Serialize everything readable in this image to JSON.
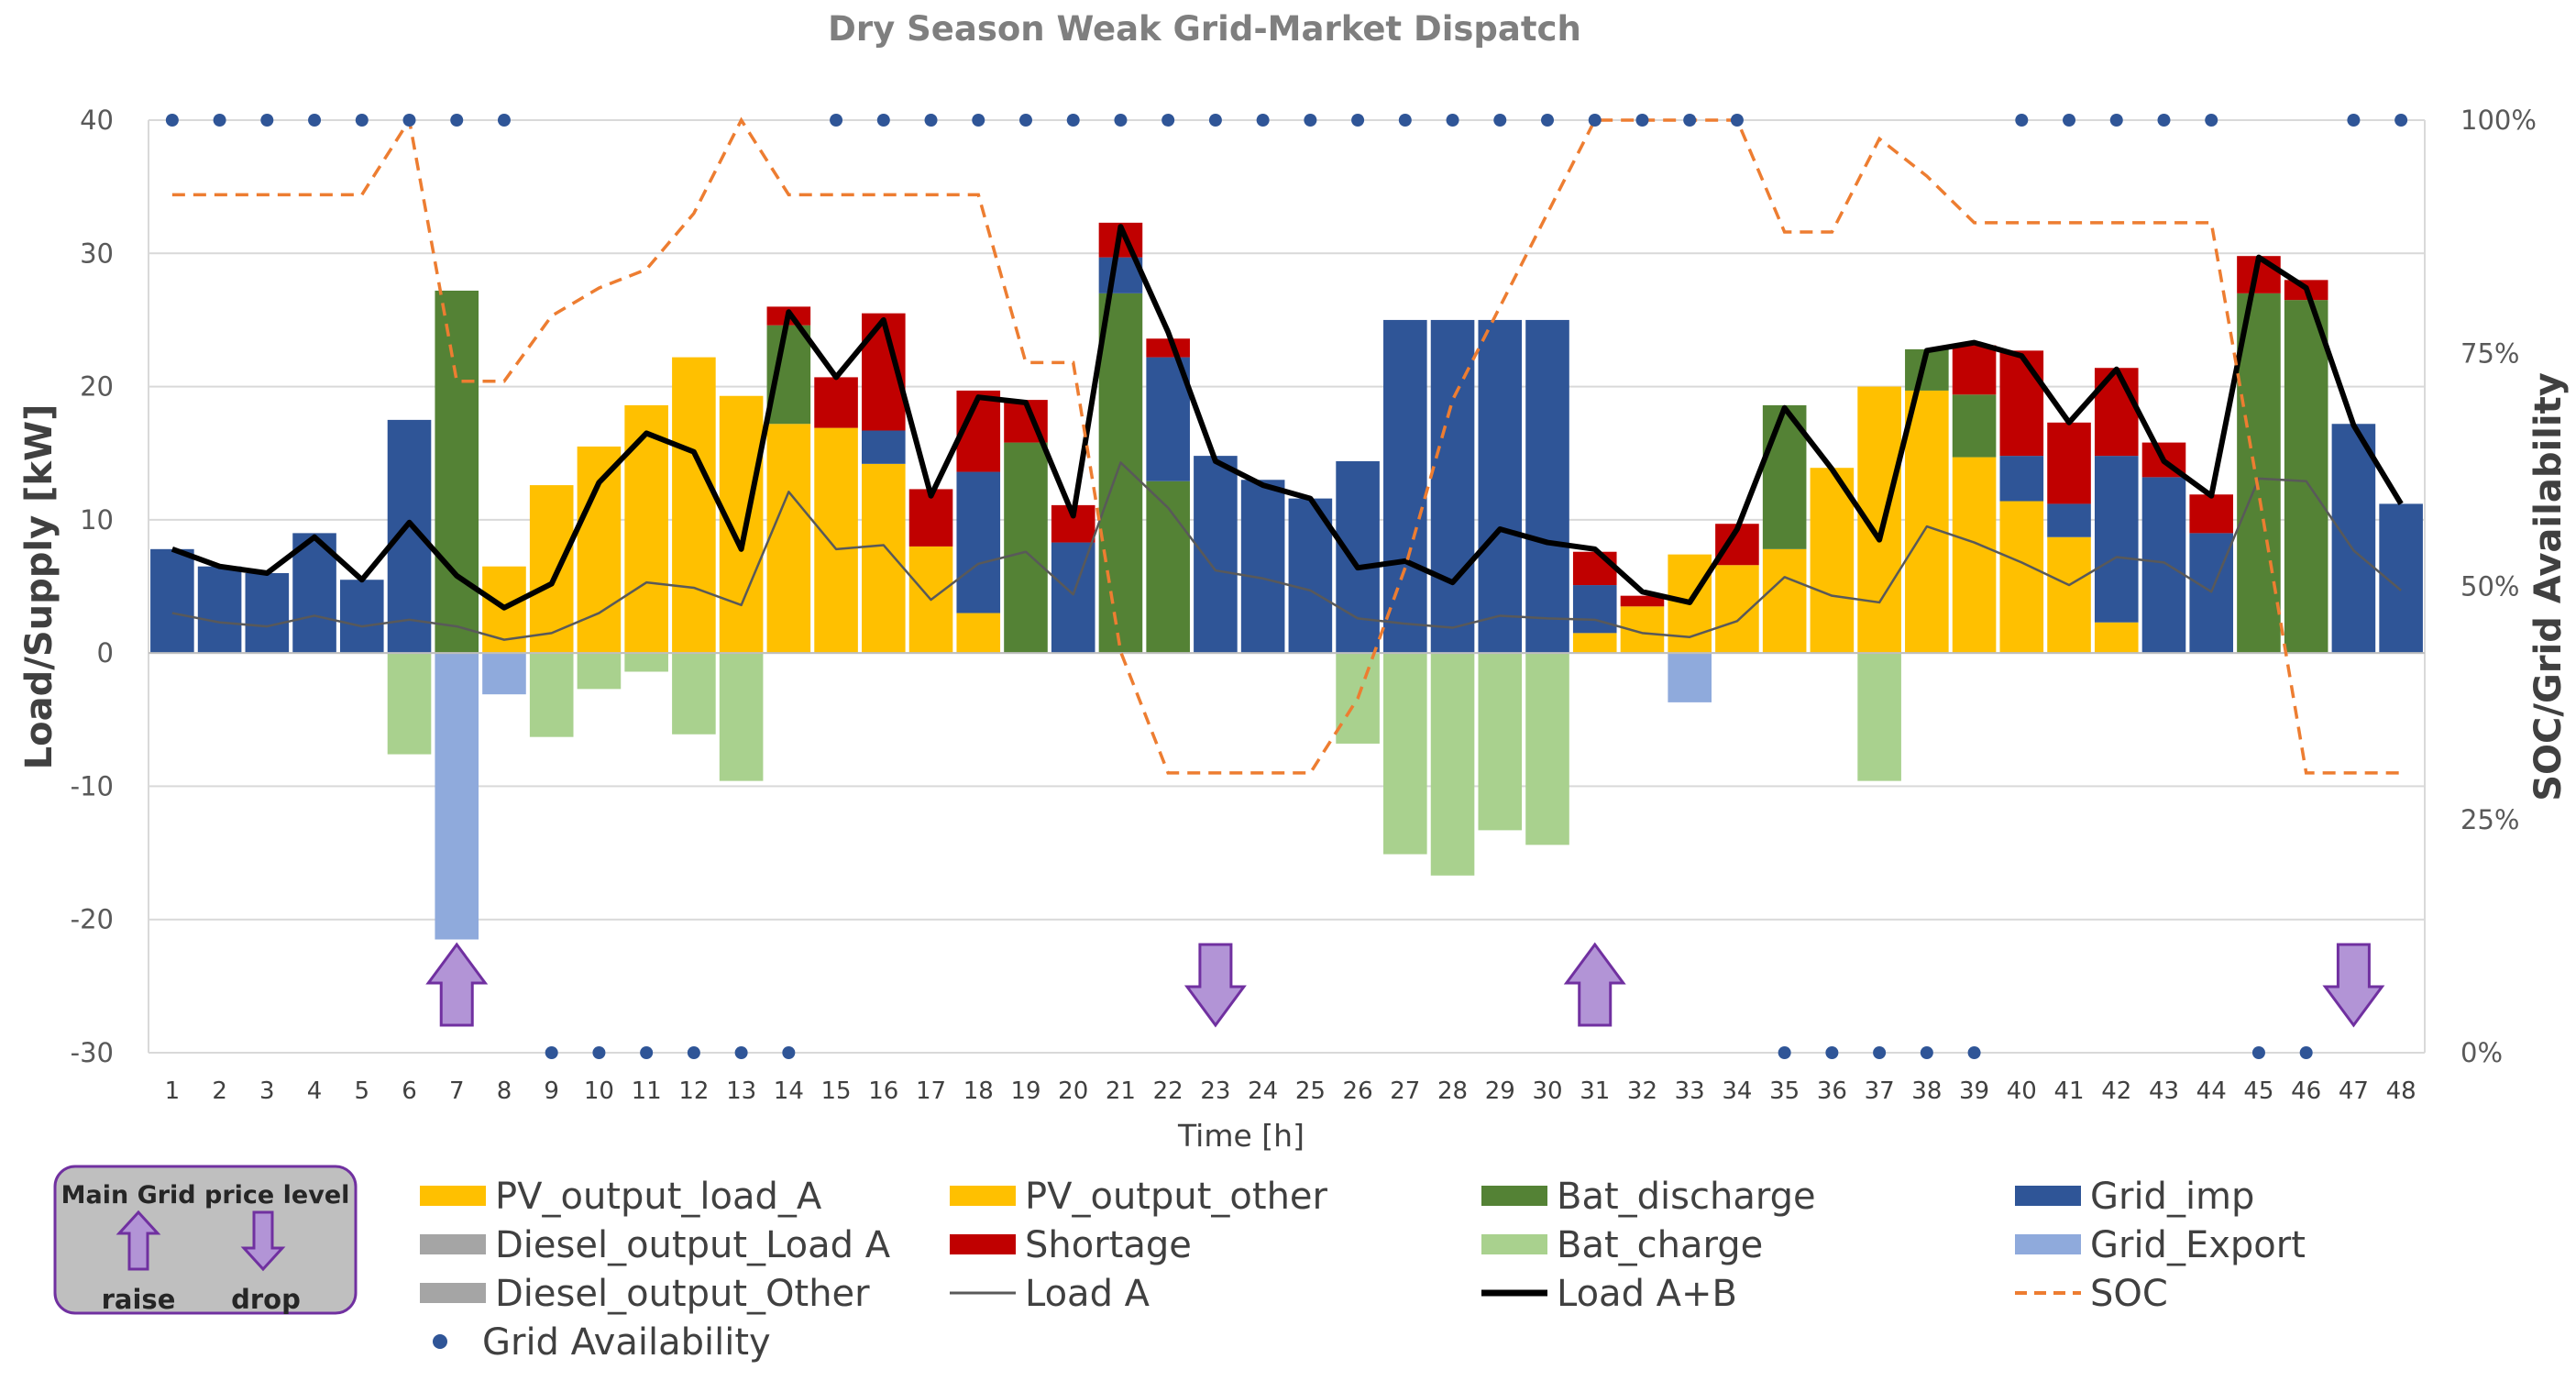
{
  "chart_data": {
    "type": "bar",
    "title": "Dry Season Weak Grid-Market Dispatch",
    "xlabel": "Time [h]",
    "ylabel": "Load/Supply [kW]",
    "ylabel_right": "SOC/Grid Availability",
    "ylim": [
      -30,
      40
    ],
    "yticks": [
      -30,
      -20,
      -10,
      0,
      10,
      20,
      30,
      40
    ],
    "ylim_right": [
      0,
      100
    ],
    "yticks_right": [
      "0%",
      "25%",
      "50%",
      "75%",
      "100%"
    ],
    "grid": true,
    "legend_position": "bottom",
    "colors": {
      "pv": "#FFC000",
      "diesel": "#A5A5A5",
      "bat_discharge": "#548235",
      "bat_charge": "#A9D18E",
      "grid_imp": "#2F5597",
      "grid_export": "#8FAADC",
      "shortage": "#C00000",
      "load_a": "#595959",
      "load_ab": "#000000",
      "soc": "#ED7D31",
      "grid_avail": "#2F5597",
      "price_arrow": "#B294D6",
      "price_arrow_edge": "#7030A0"
    },
    "x": [
      1,
      2,
      3,
      4,
      5,
      6,
      7,
      8,
      9,
      10,
      11,
      12,
      13,
      14,
      15,
      16,
      17,
      18,
      19,
      20,
      21,
      22,
      23,
      24,
      25,
      26,
      27,
      28,
      29,
      30,
      31,
      32,
      33,
      34,
      35,
      36,
      37,
      38,
      39,
      40,
      41,
      42,
      43,
      44,
      45,
      46,
      47,
      48
    ],
    "stack_series": [
      {
        "name": "PV_output_load_A",
        "color": "#FFC000",
        "values": [
          0,
          0,
          0,
          0,
          0,
          0,
          0,
          0,
          0,
          0,
          0,
          0,
          0,
          0,
          0,
          0,
          0,
          0,
          0,
          0,
          0,
          0,
          0,
          0,
          0,
          0,
          0,
          0,
          0,
          0,
          0,
          0,
          0,
          0,
          0,
          0,
          0,
          0,
          0,
          0,
          0,
          0,
          0,
          0,
          0,
          0,
          0,
          0
        ]
      },
      {
        "name": "PV_output_other",
        "color": "#FFC000",
        "values": [
          0,
          0,
          0,
          0,
          0,
          0,
          0,
          6.5,
          12.6,
          15.5,
          18.6,
          22.2,
          19.3,
          17.2,
          16.9,
          14.2,
          8,
          3,
          0,
          0,
          0,
          0,
          0,
          0,
          0,
          0,
          0,
          0,
          0,
          0,
          1.5,
          3.5,
          7.4,
          6.6,
          7.8,
          13.9,
          20,
          19.7,
          14.7,
          11.4,
          8.7,
          2.3,
          0,
          0,
          0,
          0,
          0,
          0
        ]
      },
      {
        "name": "Bat_discharge",
        "color": "#548235",
        "values": [
          0,
          0,
          0,
          0,
          0,
          0,
          27.2,
          0,
          0,
          0,
          0,
          0,
          0,
          7.4,
          0,
          0,
          0,
          0,
          15.8,
          0,
          27,
          12.9,
          0,
          0,
          0,
          0,
          0,
          0,
          0,
          0,
          0,
          0,
          0,
          0,
          10.8,
          0,
          0,
          3.1,
          4.7,
          0,
          0,
          0,
          0,
          0,
          27,
          26.5,
          0,
          0
        ]
      },
      {
        "name": "Grid_imp",
        "color": "#2F5597",
        "values": [
          7.8,
          6.5,
          6,
          9,
          5.5,
          17.5,
          0,
          0,
          0,
          0,
          0,
          0,
          0,
          0,
          0,
          2.5,
          0,
          10.6,
          0,
          8.3,
          2.7,
          9.3,
          14.8,
          13,
          11.6,
          14.4,
          25,
          25,
          25,
          25,
          3.6,
          0,
          0,
          0,
          0,
          0,
          0,
          0,
          0,
          3.4,
          2.5,
          12.5,
          13.2,
          9,
          0,
          0,
          17.2,
          11.2
        ]
      },
      {
        "name": "Shortage",
        "color": "#C00000",
        "values": [
          0,
          0,
          0,
          0,
          0,
          0,
          0,
          0,
          0,
          0,
          0,
          0,
          0,
          1.4,
          3.8,
          8.8,
          4.3,
          6.1,
          3.2,
          2.8,
          2.6,
          1.4,
          0,
          0,
          0,
          0,
          0,
          0,
          0,
          0,
          2.5,
          0.8,
          0,
          3.1,
          0,
          0,
          0,
          0,
          3.7,
          7.9,
          6.1,
          6.6,
          2.6,
          2.9,
          2.8,
          1.5,
          0,
          0
        ]
      }
    ],
    "neg_series": [
      {
        "name": "Bat_charge",
        "color": "#A9D18E",
        "values": [
          0,
          0,
          0,
          0,
          0,
          -7.6,
          0,
          0,
          -6.3,
          -2.7,
          -1.4,
          -6.1,
          -9.6,
          0,
          0,
          0,
          0,
          0,
          0,
          0,
          0,
          0,
          0,
          0,
          0,
          -6.8,
          -15.1,
          -16.7,
          -13.3,
          -14.4,
          0,
          0,
          0,
          0,
          0,
          0,
          -9.6,
          0,
          0,
          0,
          0,
          0,
          0,
          0,
          0,
          0,
          0,
          0
        ]
      },
      {
        "name": "Grid_Export",
        "color": "#8FAADC",
        "values": [
          0,
          0,
          0,
          0,
          0,
          0,
          -21.5,
          -3.1,
          0,
          0,
          0,
          0,
          0,
          0,
          0,
          0,
          0,
          0,
          0,
          0,
          0,
          0,
          0,
          0,
          0,
          0,
          0,
          0,
          0,
          0,
          0,
          0,
          -3.7,
          0,
          0,
          0,
          0,
          0,
          0,
          0,
          0,
          0,
          0,
          0,
          0,
          0,
          0,
          0
        ]
      }
    ],
    "line_series": [
      {
        "name": "Load A",
        "color": "#595959",
        "values": [
          3,
          2.3,
          2,
          2.8,
          2,
          2.5,
          2,
          1,
          1.5,
          3,
          5.3,
          4.9,
          3.6,
          12.1,
          7.8,
          8.1,
          4,
          6.7,
          7.6,
          4.4,
          14.3,
          10.9,
          6.2,
          5.6,
          4.7,
          2.6,
          2.2,
          1.9,
          2.8,
          2.6,
          2.5,
          1.5,
          1.2,
          2.4,
          5.7,
          4.3,
          3.8,
          9.5,
          8.3,
          6.8,
          5.1,
          7.2,
          6.8,
          4.6,
          13.1,
          12.9,
          7.7,
          4.7
        ]
      },
      {
        "name": "Load A+B",
        "color": "#000000",
        "values": [
          7.8,
          6.5,
          6,
          8.7,
          5.5,
          9.8,
          5.8,
          3.4,
          5.2,
          12.8,
          16.5,
          15.1,
          7.8,
          25.6,
          20.7,
          25,
          11.8,
          19.2,
          18.8,
          10.3,
          32,
          24.1,
          14.4,
          12.6,
          11.6,
          6.4,
          6.9,
          5.3,
          9.3,
          8.3,
          7.8,
          4.6,
          3.8,
          9.3,
          18.4,
          13.8,
          8.5,
          22.7,
          23.3,
          22.3,
          17.3,
          21.3,
          14.4,
          11.8,
          29.7,
          27.4,
          17.1,
          11.2
        ]
      }
    ],
    "soc_series": {
      "name": "SOC",
      "color": "#ED7D31",
      "values": [
        92,
        92,
        92,
        92,
        92,
        100,
        72,
        72,
        79,
        82,
        84,
        90,
        100,
        92,
        92,
        92,
        92,
        92,
        74,
        74,
        43,
        30,
        30,
        30,
        30,
        38,
        52,
        70,
        80,
        90,
        100,
        100,
        100,
        100,
        88,
        88,
        98,
        94,
        89,
        89,
        89,
        89,
        89,
        89,
        60,
        30,
        30,
        30
      ]
    },
    "grid_availability": {
      "name": "Grid Availability",
      "values": [
        1,
        1,
        1,
        1,
        1,
        1,
        1,
        1,
        0,
        0,
        0,
        0,
        0,
        0,
        1,
        1,
        1,
        1,
        1,
        1,
        1,
        1,
        1,
        1,
        1,
        1,
        1,
        1,
        1,
        1,
        1,
        1,
        1,
        1,
        0,
        0,
        0,
        0,
        0,
        1,
        1,
        1,
        1,
        1,
        0,
        0,
        1,
        1
      ]
    },
    "price_signals": [
      {
        "hour": 7,
        "direction": "raise"
      },
      {
        "hour": 23,
        "direction": "drop"
      },
      {
        "hour": 31,
        "direction": "raise"
      },
      {
        "hour": 47,
        "direction": "drop"
      }
    ],
    "legend": [
      {
        "label": "PV_output_load_A",
        "kind": "bar",
        "color": "#FFC000"
      },
      {
        "label": "PV_output_other",
        "kind": "bar",
        "color": "#FFC000"
      },
      {
        "label": "Bat_discharge",
        "kind": "bar",
        "color": "#548235"
      },
      {
        "label": "Grid_imp",
        "kind": "bar",
        "color": "#2F5597"
      },
      {
        "label": "Diesel_output_Load A",
        "kind": "bar",
        "color": "#A5A5A5"
      },
      {
        "label": "Shortage",
        "kind": "bar",
        "color": "#C00000"
      },
      {
        "label": "Bat_charge",
        "kind": "bar",
        "color": "#A9D18E"
      },
      {
        "label": "Grid_Export",
        "kind": "bar",
        "color": "#8FAADC"
      },
      {
        "label": "Diesel_output_Other",
        "kind": "bar",
        "color": "#A5A5A5"
      },
      {
        "label": "Load A",
        "kind": "thinline",
        "color": "#595959"
      },
      {
        "label": "Load A+B",
        "kind": "thickline",
        "color": "#000000"
      },
      {
        "label": "SOC",
        "kind": "dashed",
        "color": "#ED7D31"
      },
      {
        "label": "Grid Availability",
        "kind": "dot",
        "color": "#2F5597"
      }
    ],
    "price_box": {
      "title": "Main Grid price level",
      "raise_label": "raise",
      "drop_label": "drop"
    }
  }
}
